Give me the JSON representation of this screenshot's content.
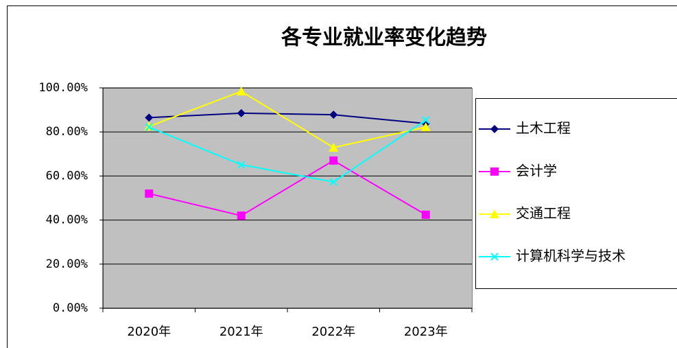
{
  "chart_data": {
    "type": "line",
    "title": "各专业就业率变化趋势",
    "categories": [
      "2020年",
      "2021年",
      "2022年",
      "2023年"
    ],
    "series": [
      {
        "name": "土木工程",
        "color": "#000080",
        "marker": "diamond",
        "values": [
          86.5,
          88.5,
          87.8,
          83.8
        ]
      },
      {
        "name": "会计学",
        "color": "#ff00ff",
        "marker": "square",
        "values": [
          52,
          42,
          67,
          42.4
        ]
      },
      {
        "name": "交通工程",
        "color": "#ffff00",
        "marker": "triangle",
        "values": [
          82.5,
          98.4,
          72.9,
          82.2
        ]
      },
      {
        "name": "计算机科学与技术",
        "color": "#00ffff",
        "marker": "x",
        "values": [
          82.2,
          65.1,
          57.3,
          85.4
        ]
      }
    ],
    "ylim": [
      0,
      100
    ],
    "yticks": [
      {
        "value": 0,
        "label": "0.00%"
      },
      {
        "value": 20,
        "label": "20.00%"
      },
      {
        "value": 40,
        "label": "40.00%"
      },
      {
        "value": 60,
        "label": "60.00%"
      },
      {
        "value": 80,
        "label": "80.00%"
      },
      {
        "value": 100,
        "label": "100.00%"
      }
    ],
    "grid": true,
    "legend": "right"
  }
}
